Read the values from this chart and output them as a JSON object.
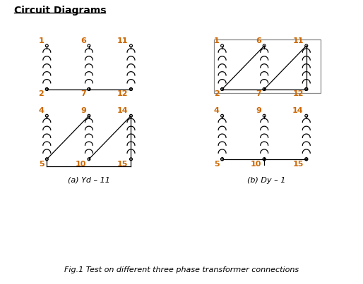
{
  "title": "Circuit Diagrams",
  "fig_caption": "Fig.1 Test on different three phase transformer connections",
  "label_a": "(a) Yd – 11",
  "label_b": "(b) Dy – 1",
  "orange": "#cc6600",
  "black": "#000000",
  "gray": "#888888",
  "white": "#ffffff",
  "title_fs": 10,
  "caption_fs": 8,
  "label_fs": 8,
  "num_fs": 8
}
